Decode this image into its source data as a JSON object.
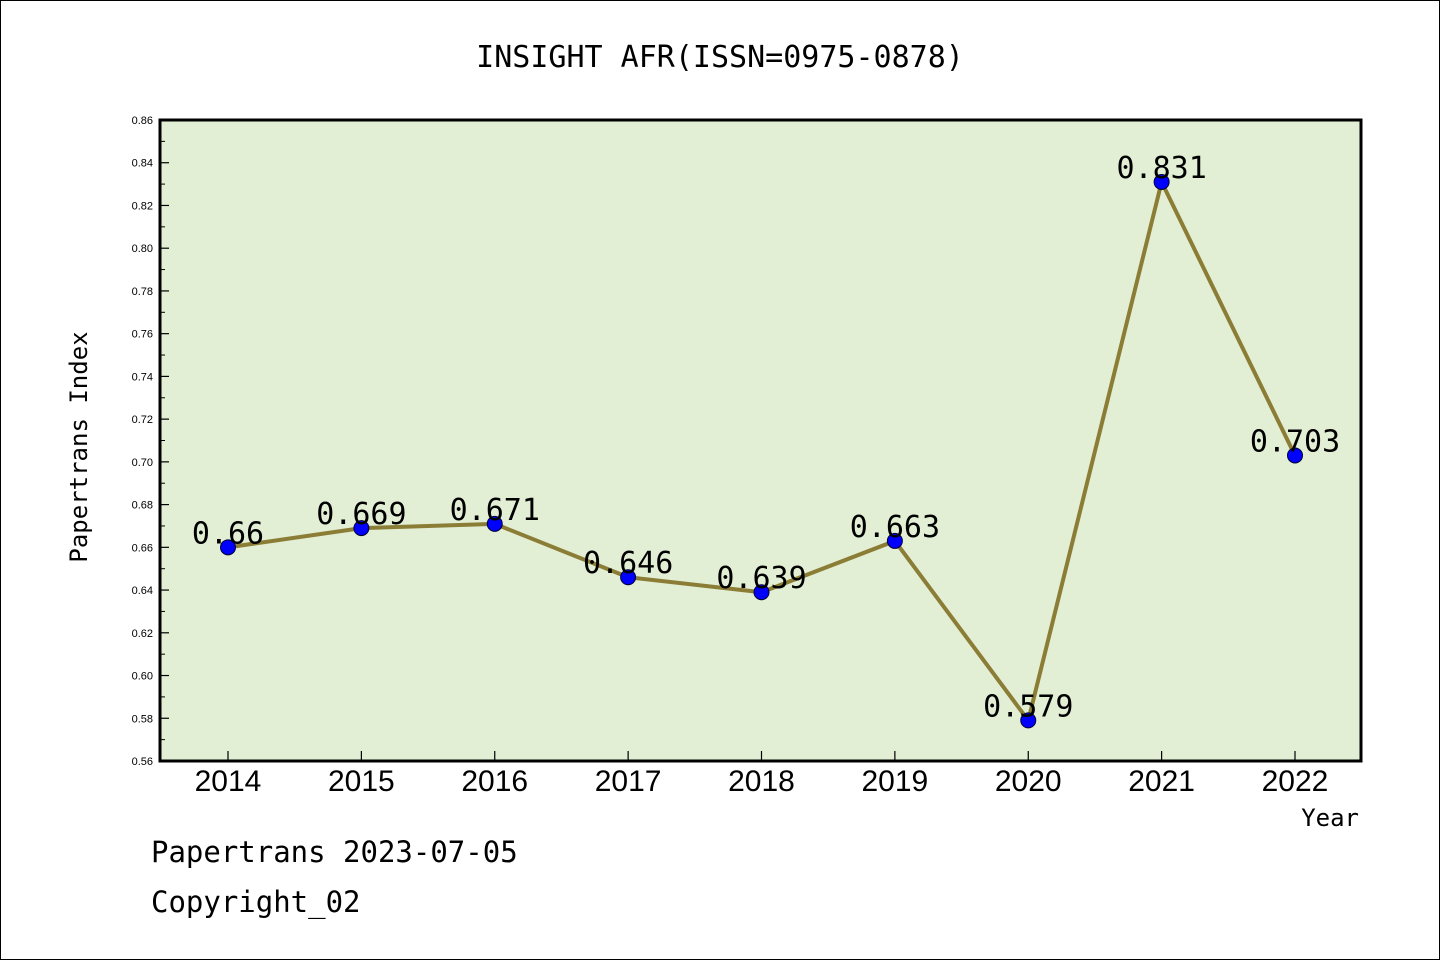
{
  "chart_data": {
    "type": "line",
    "title": "INSIGHT AFR(ISSN=0975-0878)",
    "xlabel": "Year",
    "ylabel": "Papertrans Index",
    "categories": [
      "2014",
      "2015",
      "2016",
      "2017",
      "2018",
      "2019",
      "2020",
      "2021",
      "2022"
    ],
    "values": [
      0.66,
      0.669,
      0.671,
      0.646,
      0.639,
      0.663,
      0.579,
      0.831,
      0.703
    ],
    "value_labels": [
      "0.66",
      "0.669",
      "0.671",
      "0.646",
      "0.639",
      "0.663",
      "0.579",
      "0.831",
      "0.703"
    ],
    "ylim": [
      0.56,
      0.86
    ],
    "yticks": [
      "0.56",
      "0.58",
      "0.60",
      "0.62",
      "0.64",
      "0.66",
      "0.68",
      "0.70",
      "0.72",
      "0.74",
      "0.76",
      "0.78",
      "0.80",
      "0.82",
      "0.84",
      "0.86"
    ],
    "grid": false,
    "colors": {
      "line": "#8b7d35",
      "marker": "#0000ff",
      "plot_background": "#e2efd5"
    }
  },
  "footer": {
    "line1": "Papertrans 2023-07-05",
    "line2": "Copyright_02"
  }
}
